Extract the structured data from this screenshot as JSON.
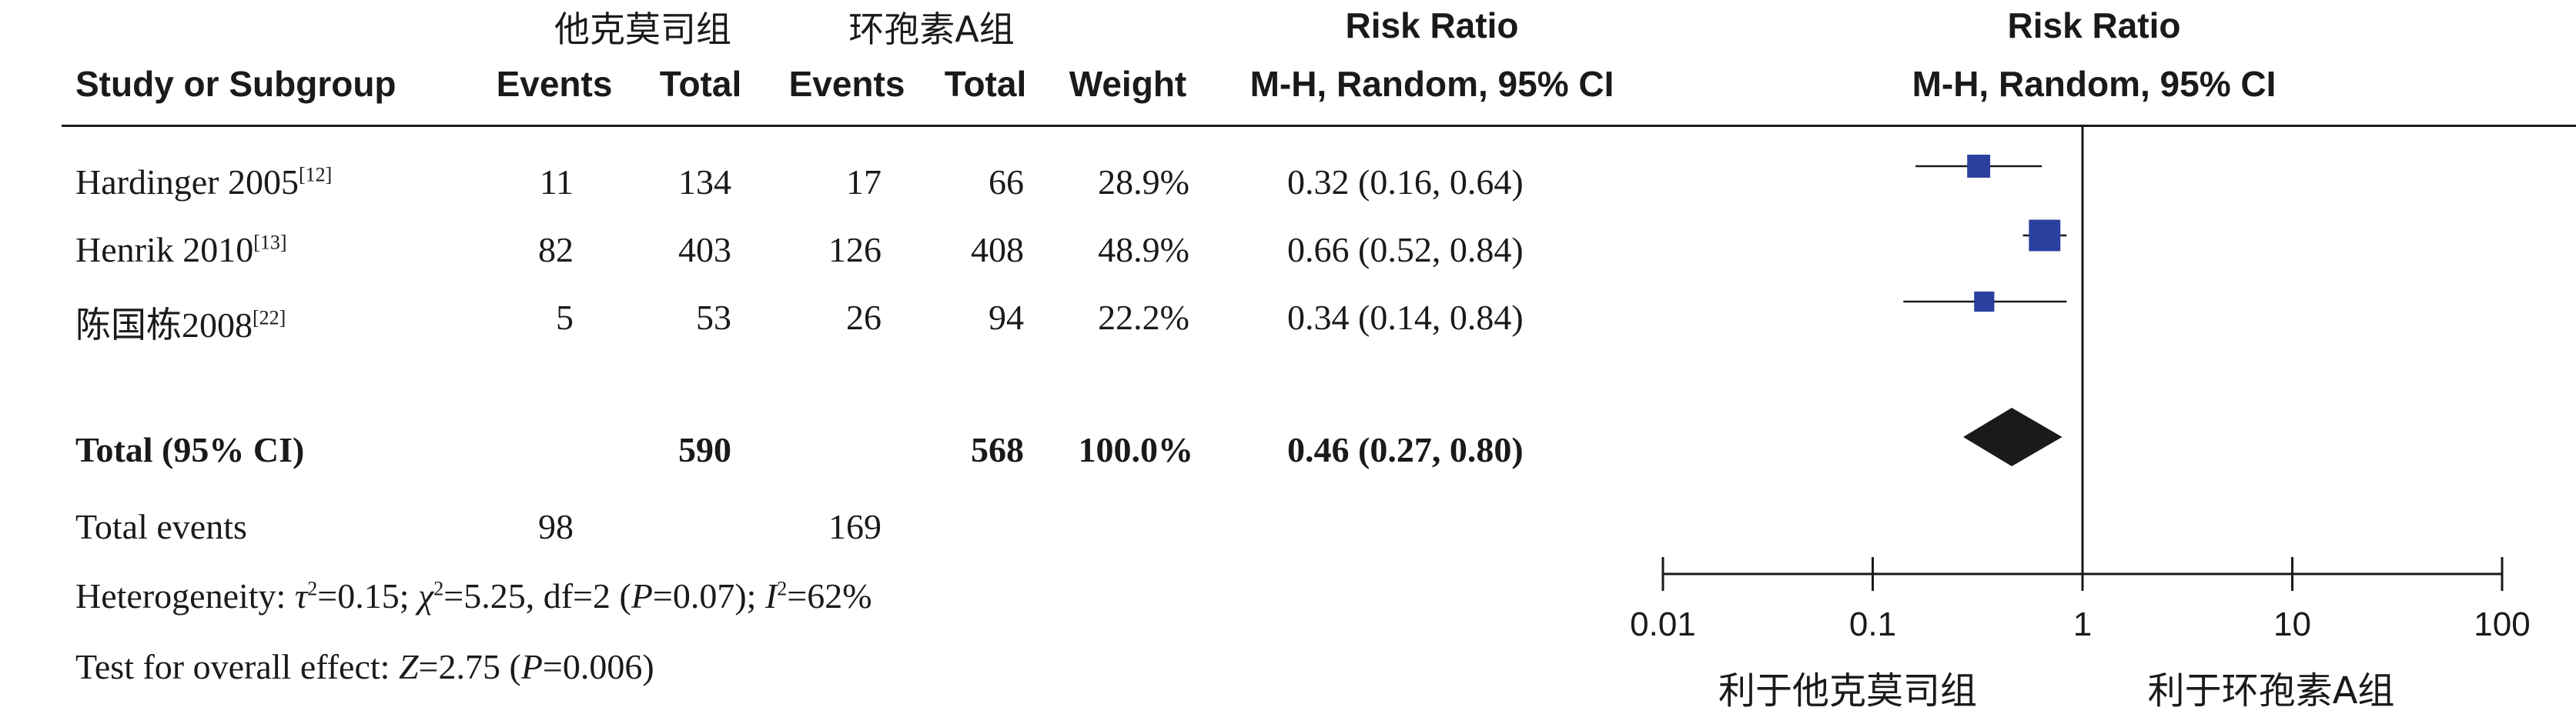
{
  "header": {
    "group1": "他克莫司组",
    "group2": "环孢素A组",
    "rr_title": "Risk Ratio",
    "plot_title": "Risk Ratio",
    "study_col": "Study or Subgroup",
    "events1": "Events",
    "total1": "Total",
    "events2": "Events",
    "total2": "Total",
    "weight": "Weight",
    "method": "M-H, Random, 95% CI",
    "plot_method": "M-H, Random, 95% CI"
  },
  "studies": [
    {
      "name": "Hardinger 2005",
      "ref": "[12]",
      "e1": "11",
      "t1": "134",
      "e2": "17",
      "t2": "66",
      "weight": "28.9%",
      "ci_text": "0.32 (0.16, 0.64)"
    },
    {
      "name": "Henrik 2010",
      "ref": "[13]",
      "e1": "82",
      "t1": "403",
      "e2": "126",
      "t2": "408",
      "weight": "48.9%",
      "ci_text": "0.66 (0.52, 0.84)"
    },
    {
      "name": "陈国栋2008",
      "ref": "[22]",
      "e1": "5",
      "t1": "53",
      "e2": "26",
      "t2": "94",
      "weight": "22.2%",
      "ci_text": "0.34 (0.14, 0.84)"
    }
  ],
  "total": {
    "label": "Total (95% CI)",
    "t1": "590",
    "t2": "568",
    "weight": "100.0%",
    "ci_text": "0.46 (0.27, 0.80)"
  },
  "events": {
    "label": "Total events",
    "e1": "98",
    "e2": "169"
  },
  "heterogeneity": {
    "prefix": "Heterogeneity: ",
    "tau": "τ",
    "p1": "=0.15; ",
    "chi": "χ",
    "p2": "=5.25, df=2 (",
    "P": "P",
    "p3": "=0.07); ",
    "I": "I",
    "p4": "=62%"
  },
  "overall": {
    "prefix": "Test for overall effect: ",
    "Z": "Z",
    "p1": "=2.75 (",
    "P": "P",
    "p2": "=0.006)"
  },
  "axis": {
    "favours_left": "利于他克莫司组",
    "favours_right": "利于环孢素A组"
  },
  "colors": {
    "square": "#2b3f9e",
    "diamond": "#1a1a1a",
    "line": "#1a1a1a"
  },
  "chart_data": {
    "type": "forest",
    "scale": "log",
    "xlim": [
      0.01,
      100
    ],
    "ticks": [
      {
        "value": 0.01,
        "label": "0.01"
      },
      {
        "value": 0.1,
        "label": "0.1"
      },
      {
        "value": 1,
        "label": "1"
      },
      {
        "value": 10,
        "label": "10"
      },
      {
        "value": 100,
        "label": "100"
      }
    ],
    "studies": [
      {
        "rr": 0.32,
        "lo": 0.16,
        "hi": 0.64,
        "weight": 28.9
      },
      {
        "rr": 0.66,
        "lo": 0.52,
        "hi": 0.84,
        "weight": 48.9
      },
      {
        "rr": 0.34,
        "lo": 0.14,
        "hi": 0.84,
        "weight": 22.2
      }
    ],
    "total": {
      "rr": 0.46,
      "lo": 0.27,
      "hi": 0.8
    }
  }
}
